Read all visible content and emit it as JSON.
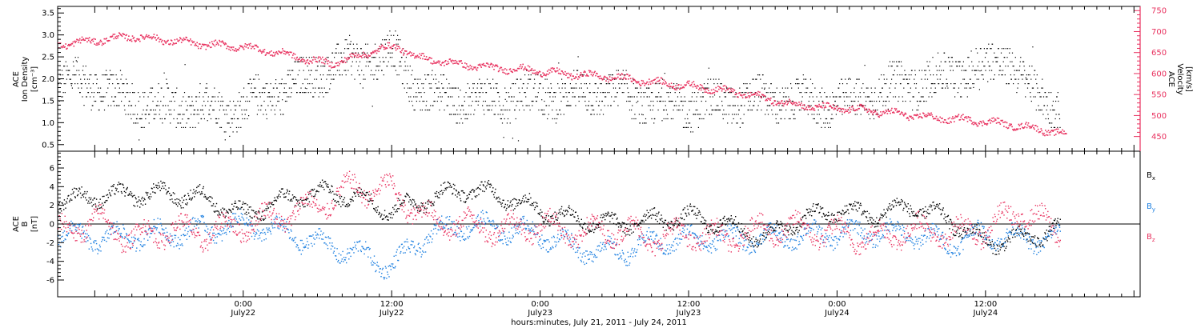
{
  "colors": {
    "axis": "#000000",
    "black_series": "#000000",
    "pink_series": "#e8305e",
    "blue_series": "#1c7fe0"
  },
  "chart_data": [
    {
      "type": "scatter",
      "panel": "top",
      "ylabel_lines": [
        "ACE",
        "Ion Density",
        "[cm⁻³]"
      ],
      "ylim": [
        0.35,
        3.65
      ],
      "yticks": [
        "0.5",
        "1.0",
        "1.5",
        "2.0",
        "2.5",
        "3.0",
        "3.5"
      ],
      "y2label_lines": [
        "ACE",
        "Velocity",
        "[km/s]"
      ],
      "y2lim": [
        415,
        760
      ],
      "y2ticks": [
        "450",
        "500",
        "550",
        "600",
        "650",
        "700",
        "750"
      ],
      "xlim_hours": [
        -15,
        72.5
      ],
      "series": [
        {
          "color": "black",
          "axis": "left",
          "anchors_hours": [
            -15,
            -13,
            -11,
            -9,
            -7,
            -5,
            -3,
            -1,
            1,
            3,
            5,
            7,
            9,
            11,
            12,
            14,
            16,
            18,
            20,
            22,
            24,
            26,
            28,
            30,
            32,
            34,
            36,
            38,
            40,
            42,
            44,
            46,
            48,
            50,
            52,
            54,
            56,
            58,
            60,
            62,
            64,
            66
          ],
          "anchors_values": [
            1.85,
            2.0,
            1.7,
            1.5,
            1.4,
            1.35,
            1.4,
            1.3,
            1.5,
            1.7,
            2.0,
            2.3,
            2.4,
            2.5,
            2.6,
            1.8,
            1.6,
            1.5,
            1.5,
            1.6,
            1.65,
            1.6,
            1.7,
            1.7,
            1.5,
            1.4,
            1.4,
            1.45,
            1.5,
            1.55,
            1.5,
            1.45,
            1.45,
            1.55,
            1.8,
            1.9,
            2.0,
            2.15,
            2.3,
            2.45,
            1.6,
            1.4
          ]
        },
        {
          "color": "pink",
          "axis": "right",
          "anchors_hours": [
            -15,
            -12,
            -9,
            -6,
            -3,
            0,
            3,
            5,
            7,
            9,
            11,
            12.5,
            14,
            17,
            20,
            23,
            26,
            29,
            32,
            35,
            38,
            41,
            44,
            47,
            50,
            53,
            56,
            59,
            62,
            65,
            66.5
          ],
          "anchors_values": [
            670,
            680,
            690,
            680,
            670,
            665,
            650,
            635,
            625,
            640,
            660,
            665,
            640,
            625,
            615,
            610,
            600,
            595,
            585,
            575,
            565,
            550,
            530,
            520,
            515,
            505,
            495,
            490,
            480,
            465,
            455
          ]
        }
      ]
    },
    {
      "type": "scatter",
      "panel": "bottom",
      "ylabel_lines": [
        "ACE",
        "B",
        "[nT]"
      ],
      "ylim": [
        -7.8,
        7.8
      ],
      "yticks": [
        "-6",
        "-4",
        "-2",
        "0",
        "2",
        "4",
        "6"
      ],
      "xlim_hours": [
        -15,
        72.5
      ],
      "xtick_labels": [
        {
          "time": "0:00",
          "date": "July22"
        },
        {
          "time": "12:00",
          "date": "July22"
        },
        {
          "time": "0:00",
          "date": "July23"
        },
        {
          "time": "12:00",
          "date": "July23"
        },
        {
          "time": "0:00",
          "date": "July24"
        },
        {
          "time": "12:00",
          "date": "July24"
        }
      ],
      "xlabel": "hours:minutes, July 21, 2011 - July 24, 2011",
      "legend": [
        {
          "text": "B",
          "sub": "x",
          "color": "black"
        },
        {
          "text": "B",
          "sub": "y",
          "color": "blue"
        },
        {
          "text": "B",
          "sub": "z",
          "color": "pink"
        }
      ],
      "series": [
        {
          "color": "black",
          "anchors_hours": [
            -15,
            -12,
            -9,
            -6,
            -3,
            0,
            3,
            6,
            9,
            12,
            15,
            18,
            21,
            24,
            27,
            30,
            33,
            36,
            39,
            42,
            45,
            48,
            51,
            54,
            57,
            60,
            63,
            66
          ],
          "anchors_values": [
            2.5,
            3.0,
            3.2,
            3.3,
            2.8,
            1.0,
            2.5,
            3.5,
            3.0,
            1.5,
            2.8,
            3.8,
            3.0,
            1.5,
            0.5,
            0.0,
            0.5,
            0.8,
            0.0,
            -1.5,
            0.5,
            1.5,
            1.0,
            2.0,
            0.5,
            -2.0,
            -1.5,
            -0.5
          ],
          "amplitude": 1.8
        },
        {
          "color": "blue",
          "anchors_hours": [
            -15,
            -12,
            -9,
            -6,
            -3,
            0,
            3,
            6,
            9,
            12,
            15,
            18,
            21,
            24,
            27,
            30,
            33,
            36,
            39,
            42,
            45,
            48,
            51,
            54,
            57,
            60,
            63,
            66
          ],
          "anchors_values": [
            -1.0,
            -1.5,
            -1.2,
            -1.0,
            -0.5,
            0.0,
            -0.8,
            -2.0,
            -3.0,
            -4.5,
            -1.0,
            0.0,
            -0.5,
            -1.0,
            -2.5,
            -3.0,
            -2.0,
            -1.5,
            -1.5,
            -1.5,
            -1.2,
            -1.0,
            -0.8,
            -1.0,
            -2.0,
            -1.0,
            -1.5,
            -1.5
          ],
          "amplitude": 2.2
        },
        {
          "color": "pink",
          "anchors_hours": [
            -15,
            -12,
            -9,
            -6,
            -3,
            0,
            3,
            6,
            9,
            12,
            15,
            18,
            21,
            24,
            27,
            30,
            33,
            36,
            39,
            42,
            45,
            48,
            51,
            54,
            57,
            60,
            63,
            66
          ],
          "anchors_values": [
            -1.0,
            0.5,
            -1.5,
            -0.5,
            -1.0,
            0.0,
            1.0,
            2.0,
            4.0,
            3.5,
            0.5,
            0.0,
            -0.5,
            0.0,
            -1.0,
            -0.5,
            -1.5,
            -1.0,
            -1.5,
            -0.5,
            -0.5,
            -1.0,
            -1.5,
            -0.5,
            -1.0,
            -0.5,
            1.5,
            -1.0
          ],
          "amplitude": 2.6
        }
      ]
    }
  ]
}
